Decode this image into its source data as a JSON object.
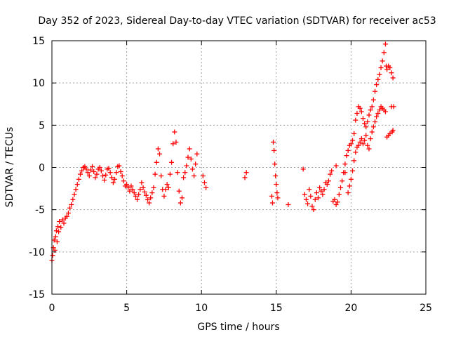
{
  "chart_data": {
    "type": "scatter",
    "title": "Day 352 of 2023, Sidereal Day-to-day VTEC variation (SDTVAR) for receiver ac53",
    "xlabel": "GPS time / hours",
    "ylabel": "SDTVAR / TECUs",
    "xlim": [
      0,
      25
    ],
    "ylim": [
      -15,
      15
    ],
    "xticks": [
      0,
      5,
      10,
      15,
      20,
      25
    ],
    "yticks": [
      -15,
      -10,
      -5,
      0,
      5,
      10,
      15
    ],
    "xtick_labels": [
      "0",
      "5",
      "10",
      "15",
      "20",
      "25"
    ],
    "ytick_labels": [
      "-15",
      "-10",
      "-5",
      "0",
      "5",
      "10",
      "15"
    ],
    "grid": true,
    "marker": "+",
    "color": "#ff0000",
    "series": [
      {
        "name": "SDTVAR",
        "points": [
          [
            0.0,
            -11.0
          ],
          [
            0.05,
            -10.4
          ],
          [
            0.1,
            -9.5
          ],
          [
            0.15,
            -8.6
          ],
          [
            0.2,
            -9.8
          ],
          [
            0.25,
            -8.2
          ],
          [
            0.3,
            -7.5
          ],
          [
            0.35,
            -8.8
          ],
          [
            0.4,
            -7.0
          ],
          [
            0.45,
            -7.6
          ],
          [
            0.5,
            -6.4
          ],
          [
            0.6,
            -7.1
          ],
          [
            0.7,
            -6.2
          ],
          [
            0.8,
            -6.6
          ],
          [
            0.9,
            -6.0
          ],
          [
            1.0,
            -5.8
          ],
          [
            1.1,
            -5.4
          ],
          [
            1.2,
            -4.8
          ],
          [
            1.3,
            -4.4
          ],
          [
            1.4,
            -3.8
          ],
          [
            1.5,
            -3.2
          ],
          [
            1.6,
            -2.6
          ],
          [
            1.7,
            -2.0
          ],
          [
            1.8,
            -1.4
          ],
          [
            1.9,
            -0.8
          ],
          [
            2.0,
            -0.4
          ],
          [
            2.1,
            0.0
          ],
          [
            2.2,
            0.1
          ],
          [
            2.3,
            -0.2
          ],
          [
            2.4,
            -0.6
          ],
          [
            2.5,
            -1.0
          ],
          [
            2.6,
            -0.3
          ],
          [
            2.7,
            0.1
          ],
          [
            2.8,
            -0.5
          ],
          [
            2.9,
            -1.2
          ],
          [
            3.0,
            -0.8
          ],
          [
            3.1,
            -0.2
          ],
          [
            3.2,
            0.0
          ],
          [
            3.3,
            -0.4
          ],
          [
            3.4,
            -1.0
          ],
          [
            3.5,
            -1.5
          ],
          [
            3.6,
            -0.9
          ],
          [
            3.7,
            -0.2
          ],
          [
            3.8,
            -0.1
          ],
          [
            3.9,
            -0.6
          ],
          [
            4.0,
            -1.2
          ],
          [
            4.1,
            -1.8
          ],
          [
            4.2,
            -1.4
          ],
          [
            4.3,
            -0.6
          ],
          [
            4.4,
            0.1
          ],
          [
            4.5,
            0.2
          ],
          [
            4.6,
            -0.5
          ],
          [
            4.7,
            -1.0
          ],
          [
            4.8,
            -1.6
          ],
          [
            4.9,
            -2.2
          ],
          [
            5.0,
            -2.0
          ],
          [
            5.1,
            -2.4
          ],
          [
            5.2,
            -2.8
          ],
          [
            5.3,
            -2.2
          ],
          [
            5.4,
            -2.6
          ],
          [
            5.5,
            -3.0
          ],
          [
            5.6,
            -3.4
          ],
          [
            5.7,
            -3.8
          ],
          [
            5.8,
            -3.2
          ],
          [
            5.9,
            -2.6
          ],
          [
            6.0,
            -1.8
          ],
          [
            6.1,
            -2.4
          ],
          [
            6.2,
            -2.9
          ],
          [
            6.3,
            -3.3
          ],
          [
            6.4,
            -3.8
          ],
          [
            6.5,
            -4.2
          ],
          [
            6.6,
            -3.6
          ],
          [
            6.7,
            -3.0
          ],
          [
            6.8,
            -2.4
          ],
          [
            6.9,
            -0.8
          ],
          [
            7.0,
            0.6
          ],
          [
            7.1,
            2.2
          ],
          [
            7.2,
            1.6
          ],
          [
            7.3,
            -1.0
          ],
          [
            7.4,
            -2.6
          ],
          [
            7.5,
            -3.4
          ],
          [
            7.6,
            -2.6
          ],
          [
            7.7,
            -2.0
          ],
          [
            7.8,
            -2.4
          ],
          [
            7.9,
            -0.8
          ],
          [
            8.0,
            0.6
          ],
          [
            8.1,
            2.8
          ],
          [
            8.2,
            4.2
          ],
          [
            8.3,
            3.0
          ],
          [
            8.4,
            -0.6
          ],
          [
            8.5,
            -2.8
          ],
          [
            8.6,
            -4.2
          ],
          [
            8.7,
            -3.6
          ],
          [
            8.8,
            -1.2
          ],
          [
            8.9,
            -0.6
          ],
          [
            9.0,
            0.2
          ],
          [
            9.1,
            1.2
          ],
          [
            9.2,
            2.2
          ],
          [
            9.3,
            1.0
          ],
          [
            9.4,
            -0.2
          ],
          [
            9.5,
            -1.0
          ],
          [
            9.6,
            0.4
          ],
          [
            9.7,
            1.6
          ],
          [
            10.1,
            -1.0
          ],
          [
            10.2,
            -1.8
          ],
          [
            10.3,
            -2.4
          ],
          [
            12.9,
            -1.2
          ],
          [
            13.0,
            -0.6
          ],
          [
            14.7,
            -3.4
          ],
          [
            14.75,
            -4.2
          ],
          [
            14.8,
            3.0
          ],
          [
            14.85,
            2.0
          ],
          [
            14.9,
            0.4
          ],
          [
            14.95,
            -1.0
          ],
          [
            15.0,
            -2.0
          ],
          [
            15.05,
            -3.0
          ],
          [
            15.1,
            -3.6
          ],
          [
            15.8,
            -4.4
          ],
          [
            16.8,
            -0.2
          ],
          [
            16.9,
            -3.2
          ],
          [
            17.0,
            -3.8
          ],
          [
            17.1,
            -4.3
          ],
          [
            17.2,
            -2.6
          ],
          [
            17.3,
            -3.4
          ],
          [
            17.4,
            -4.6
          ],
          [
            17.5,
            -5.0
          ],
          [
            17.6,
            -3.8
          ],
          [
            17.7,
            -3.0
          ],
          [
            17.8,
            -3.6
          ],
          [
            17.9,
            -2.4
          ],
          [
            18.0,
            -2.8
          ],
          [
            18.1,
            -3.2
          ],
          [
            18.2,
            -2.6
          ],
          [
            18.3,
            -1.8
          ],
          [
            18.4,
            -2.0
          ],
          [
            18.5,
            -1.6
          ],
          [
            18.6,
            -0.8
          ],
          [
            18.7,
            -0.4
          ],
          [
            18.8,
            -4.0
          ],
          [
            18.9,
            -3.8
          ],
          [
            19.0,
            -4.4
          ],
          [
            19.0,
            0.2
          ],
          [
            19.1,
            -4.1
          ],
          [
            19.2,
            -3.2
          ],
          [
            19.3,
            -2.4
          ],
          [
            19.4,
            -1.6
          ],
          [
            19.5,
            -0.6
          ],
          [
            19.6,
            0.4
          ],
          [
            19.6,
            -0.6
          ],
          [
            19.7,
            1.4
          ],
          [
            19.8,
            2.0
          ],
          [
            19.8,
            -3.0
          ],
          [
            19.9,
            2.6
          ],
          [
            19.9,
            -2.2
          ],
          [
            20.0,
            2.8
          ],
          [
            20.0,
            -1.4
          ],
          [
            20.1,
            3.2
          ],
          [
            20.1,
            -0.4
          ],
          [
            20.2,
            4.0
          ],
          [
            20.2,
            0.8
          ],
          [
            20.3,
            5.6
          ],
          [
            20.3,
            1.8
          ],
          [
            20.4,
            6.4
          ],
          [
            20.4,
            2.4
          ],
          [
            20.5,
            7.2
          ],
          [
            20.5,
            2.6
          ],
          [
            20.6,
            7.0
          ],
          [
            20.6,
            3.0
          ],
          [
            20.7,
            6.6
          ],
          [
            20.7,
            3.4
          ],
          [
            20.8,
            5.8
          ],
          [
            20.8,
            2.8
          ],
          [
            20.9,
            5.2
          ],
          [
            20.9,
            3.2
          ],
          [
            21.0,
            4.8
          ],
          [
            21.0,
            3.8
          ],
          [
            21.1,
            5.4
          ],
          [
            21.1,
            2.6
          ],
          [
            21.2,
            6.2
          ],
          [
            21.2,
            2.2
          ],
          [
            21.3,
            6.8
          ],
          [
            21.3,
            3.4
          ],
          [
            21.4,
            7.2
          ],
          [
            21.4,
            4.2
          ],
          [
            21.5,
            8.0
          ],
          [
            21.5,
            4.8
          ],
          [
            21.6,
            9.0
          ],
          [
            21.6,
            5.4
          ],
          [
            21.7,
            9.8
          ],
          [
            21.7,
            6.0
          ],
          [
            21.8,
            10.4
          ],
          [
            21.8,
            6.4
          ],
          [
            21.9,
            11.0
          ],
          [
            21.9,
            6.8
          ],
          [
            22.0,
            11.8
          ],
          [
            22.0,
            7.2
          ],
          [
            22.1,
            12.6
          ],
          [
            22.1,
            7.0
          ],
          [
            22.2,
            13.6
          ],
          [
            22.2,
            6.8
          ],
          [
            22.3,
            14.6
          ],
          [
            22.3,
            6.6
          ],
          [
            22.35,
            12.0
          ],
          [
            22.4,
            11.6
          ],
          [
            22.4,
            3.6
          ],
          [
            22.5,
            12.0
          ],
          [
            22.5,
            3.8
          ],
          [
            22.6,
            11.8
          ],
          [
            22.6,
            4.0
          ],
          [
            22.7,
            11.2
          ],
          [
            22.7,
            7.2
          ],
          [
            22.75,
            4.2
          ],
          [
            22.8,
            10.6
          ],
          [
            22.8,
            4.4
          ],
          [
            22.85,
            7.2
          ]
        ]
      }
    ]
  }
}
